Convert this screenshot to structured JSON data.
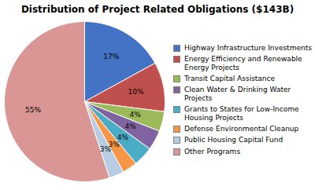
{
  "chart_data": {
    "type": "pie",
    "title": "Distribution of Project Related Obligations ($143B)",
    "categories": [
      "Highway Infrastructure Investments",
      "Energy Efficiency and Renewable\nEnergy Projects",
      "Transit Capital Assistance",
      "Clean Water & Drinking Water\nProjects",
      "Grants to States for Low-Income\nHousing Projects",
      "Defense Environmental Cleanup",
      "Public Housing Capital Fund",
      "Other Programs"
    ],
    "values": [
      17,
      10,
      4,
      4,
      4,
      3,
      3,
      55
    ],
    "value_labels": [
      "17%",
      "10%",
      "4%",
      "4%",
      "4%",
      "3%",
      "3%",
      "55%"
    ],
    "colors": [
      "#4472C4",
      "#C0504D",
      "#9BBB59",
      "#8064A2",
      "#4BACC6",
      "#F79646",
      "#B8CCE4",
      "#D99694"
    ],
    "data_labels": true,
    "legend": "right"
  }
}
